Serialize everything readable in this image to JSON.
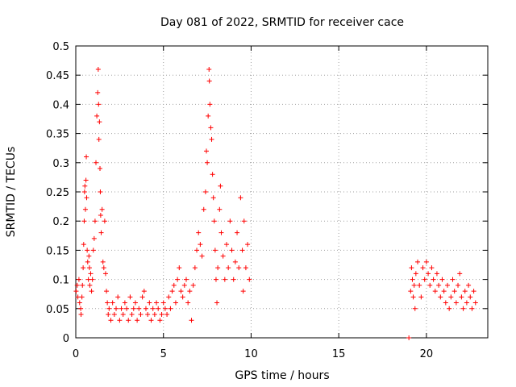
{
  "chart_data": {
    "type": "scatter",
    "title": "Day 081 of 2022, SRMTID for receiver cace",
    "xlabel": "GPS time / hours",
    "ylabel": "SRMTID / TECUs",
    "xlim": [
      0,
      23.5
    ],
    "ylim": [
      0,
      0.5
    ],
    "xticks": [
      0,
      5,
      10,
      15,
      20
    ],
    "xtick_labels": [
      "0",
      "5",
      "10",
      "15",
      "20"
    ],
    "yticks": [
      0,
      0.05,
      0.1,
      0.15,
      0.2,
      0.25,
      0.3,
      0.35,
      0.4,
      0.45,
      0.5
    ],
    "ytick_labels": [
      "0",
      "0.05",
      "0.1",
      "0.15",
      "0.2",
      "0.25",
      "0.3",
      "0.35",
      "0.4",
      "0.45",
      "0.5"
    ],
    "grid": true,
    "marker": "plus",
    "color": "#ff0000",
    "series": [
      {
        "name": "SRMTID",
        "points": [
          [
            0.02,
            0.08
          ],
          [
            0.08,
            0.09
          ],
          [
            0.12,
            0.07
          ],
          [
            0.18,
            0.1
          ],
          [
            0.22,
            0.06
          ],
          [
            0.28,
            0.05
          ],
          [
            0.3,
            0.04
          ],
          [
            0.35,
            0.07
          ],
          [
            0.38,
            0.09
          ],
          [
            0.42,
            0.12
          ],
          [
            0.45,
            0.16
          ],
          [
            0.48,
            0.2
          ],
          [
            0.5,
            0.25
          ],
          [
            0.52,
            0.26
          ],
          [
            0.55,
            0.22
          ],
          [
            0.58,
            0.27
          ],
          [
            0.6,
            0.31
          ],
          [
            0.62,
            0.24
          ],
          [
            0.65,
            0.15
          ],
          [
            0.68,
            0.13
          ],
          [
            0.72,
            0.1
          ],
          [
            0.75,
            0.14
          ],
          [
            0.78,
            0.12
          ],
          [
            0.8,
            0.09
          ],
          [
            0.85,
            0.11
          ],
          [
            0.9,
            0.08
          ],
          [
            0.95,
            0.1
          ],
          [
            1.0,
            0.15
          ],
          [
            1.05,
            0.17
          ],
          [
            1.1,
            0.2
          ],
          [
            1.15,
            0.3
          ],
          [
            1.2,
            0.38
          ],
          [
            1.25,
            0.42
          ],
          [
            1.28,
            0.46
          ],
          [
            1.3,
            0.4
          ],
          [
            1.32,
            0.34
          ],
          [
            1.35,
            0.37
          ],
          [
            1.38,
            0.29
          ],
          [
            1.4,
            0.25
          ],
          [
            1.42,
            0.21
          ],
          [
            1.45,
            0.18
          ],
          [
            1.5,
            0.22
          ],
          [
            1.55,
            0.13
          ],
          [
            1.6,
            0.12
          ],
          [
            1.65,
            0.2
          ],
          [
            1.7,
            0.11
          ],
          [
            1.75,
            0.08
          ],
          [
            1.8,
            0.06
          ],
          [
            1.85,
            0.04
          ],
          [
            1.9,
            0.05
          ],
          [
            2.0,
            0.03
          ],
          [
            2.1,
            0.06
          ],
          [
            2.2,
            0.04
          ],
          [
            2.3,
            0.05
          ],
          [
            2.4,
            0.07
          ],
          [
            2.5,
            0.03
          ],
          [
            2.6,
            0.05
          ],
          [
            2.7,
            0.04
          ],
          [
            2.8,
            0.06
          ],
          [
            2.9,
            0.05
          ],
          [
            3.0,
            0.03
          ],
          [
            3.1,
            0.07
          ],
          [
            3.2,
            0.04
          ],
          [
            3.3,
            0.05
          ],
          [
            3.4,
            0.06
          ],
          [
            3.5,
            0.03
          ],
          [
            3.6,
            0.05
          ],
          [
            3.7,
            0.04
          ],
          [
            3.8,
            0.07
          ],
          [
            3.9,
            0.08
          ],
          [
            4.0,
            0.05
          ],
          [
            4.1,
            0.04
          ],
          [
            4.2,
            0.06
          ],
          [
            4.3,
            0.03
          ],
          [
            4.4,
            0.05
          ],
          [
            4.5,
            0.04
          ],
          [
            4.6,
            0.06
          ],
          [
            4.7,
            0.05
          ],
          [
            4.8,
            0.03
          ],
          [
            4.9,
            0.04
          ],
          [
            5.0,
            0.06
          ],
          [
            5.1,
            0.05
          ],
          [
            5.2,
            0.04
          ],
          [
            5.3,
            0.07
          ],
          [
            5.4,
            0.05
          ],
          [
            5.5,
            0.08
          ],
          [
            5.6,
            0.09
          ],
          [
            5.7,
            0.06
          ],
          [
            5.8,
            0.1
          ],
          [
            5.9,
            0.12
          ],
          [
            6.0,
            0.08
          ],
          [
            6.1,
            0.07
          ],
          [
            6.2,
            0.09
          ],
          [
            6.3,
            0.1
          ],
          [
            6.4,
            0.06
          ],
          [
            6.5,
            0.08
          ],
          [
            6.6,
            0.03
          ],
          [
            6.7,
            0.09
          ],
          [
            6.8,
            0.12
          ],
          [
            6.9,
            0.15
          ],
          [
            7.0,
            0.18
          ],
          [
            7.1,
            0.16
          ],
          [
            7.2,
            0.14
          ],
          [
            7.3,
            0.22
          ],
          [
            7.4,
            0.25
          ],
          [
            7.45,
            0.32
          ],
          [
            7.5,
            0.3
          ],
          [
            7.55,
            0.38
          ],
          [
            7.6,
            0.46
          ],
          [
            7.62,
            0.44
          ],
          [
            7.65,
            0.4
          ],
          [
            7.7,
            0.36
          ],
          [
            7.75,
            0.34
          ],
          [
            7.8,
            0.28
          ],
          [
            7.85,
            0.24
          ],
          [
            7.9,
            0.2
          ],
          [
            7.95,
            0.15
          ],
          [
            8.0,
            0.1
          ],
          [
            8.05,
            0.06
          ],
          [
            8.1,
            0.12
          ],
          [
            8.2,
            0.22
          ],
          [
            8.25,
            0.26
          ],
          [
            8.3,
            0.18
          ],
          [
            8.4,
            0.14
          ],
          [
            8.5,
            0.1
          ],
          [
            8.6,
            0.16
          ],
          [
            8.7,
            0.12
          ],
          [
            8.8,
            0.2
          ],
          [
            8.9,
            0.15
          ],
          [
            9.0,
            0.1
          ],
          [
            9.1,
            0.13
          ],
          [
            9.2,
            0.18
          ],
          [
            9.3,
            0.12
          ],
          [
            9.4,
            0.24
          ],
          [
            9.5,
            0.15
          ],
          [
            9.55,
            0.08
          ],
          [
            9.6,
            0.2
          ],
          [
            9.7,
            0.12
          ],
          [
            9.8,
            0.16
          ],
          [
            9.9,
            0.1
          ],
          [
            19.0,
            0.0
          ],
          [
            19.1,
            0.08
          ],
          [
            19.15,
            0.12
          ],
          [
            19.2,
            0.1
          ],
          [
            19.25,
            0.07
          ],
          [
            19.3,
            0.09
          ],
          [
            19.35,
            0.05
          ],
          [
            19.4,
            0.11
          ],
          [
            19.5,
            0.13
          ],
          [
            19.6,
            0.09
          ],
          [
            19.7,
            0.07
          ],
          [
            19.8,
            0.12
          ],
          [
            19.9,
            0.1
          ],
          [
            20.0,
            0.13
          ],
          [
            20.1,
            0.11
          ],
          [
            20.2,
            0.09
          ],
          [
            20.3,
            0.12
          ],
          [
            20.4,
            0.1
          ],
          [
            20.5,
            0.08
          ],
          [
            20.6,
            0.11
          ],
          [
            20.7,
            0.09
          ],
          [
            20.8,
            0.07
          ],
          [
            20.9,
            0.1
          ],
          [
            21.0,
            0.08
          ],
          [
            21.1,
            0.06
          ],
          [
            21.2,
            0.09
          ],
          [
            21.3,
            0.05
          ],
          [
            21.4,
            0.07
          ],
          [
            21.5,
            0.1
          ],
          [
            21.6,
            0.08
          ],
          [
            21.7,
            0.06
          ],
          [
            21.8,
            0.09
          ],
          [
            21.9,
            0.11
          ],
          [
            22.0,
            0.07
          ],
          [
            22.1,
            0.05
          ],
          [
            22.2,
            0.08
          ],
          [
            22.3,
            0.06
          ],
          [
            22.4,
            0.09
          ],
          [
            22.5,
            0.07
          ],
          [
            22.6,
            0.05
          ],
          [
            22.7,
            0.08
          ],
          [
            22.8,
            0.06
          ]
        ]
      }
    ]
  }
}
